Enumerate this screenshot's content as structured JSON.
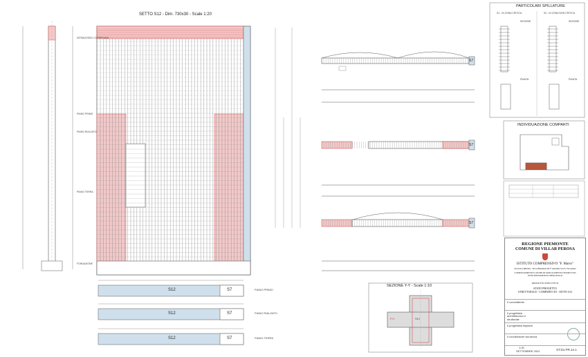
{
  "drawing": {
    "main_title": "SETTO S12 - Dim. 730x30 - Scale 1:20",
    "section_title": "SEZIONE Y-Y - Scale 1:10",
    "elevation_labels": [
      "FONDAZIONE",
      "PIANO TERRA",
      "PIANO RIALZATO",
      "PIANO PRIMO",
      "INTRADOSSO COPERTURA"
    ],
    "strip_labels": [
      {
        "left": "S12",
        "right": "S7",
        "level": "PIANO PRIMO"
      },
      {
        "left": "S12",
        "right": "S7",
        "level": "PIANO RIALZATO"
      },
      {
        "left": "S12",
        "right": "S7",
        "level": "PIANO TERRA"
      }
    ],
    "plan_tags": [
      "S7",
      "S7",
      "S7"
    ],
    "section_tags": [
      "P.V.",
      "S12"
    ]
  },
  "details": {
    "title": "PARTICOLARI SPILLATURE",
    "cols": [
      "S1 - IN ZONA CRITICA",
      "S2 - IN ZONA NON CRITICA"
    ],
    "sub_labels": [
      "SEZIONE",
      "SEZIONE",
      "PIANTA",
      "PIANTA"
    ]
  },
  "key_plan": {
    "title": "INDIVIDUAZIONE COMPARTI"
  },
  "title_block": {
    "region": "REGIONE PIEMONTE",
    "comune": "COMUNE DI VILLAR PEROSA",
    "institute": "ISTITUTO COMPRENSIVO \"F. Marro\"",
    "school": "SCUOLA MEDIA - SECONDARIA DI I° GRADO Via IV Novembre",
    "works": "COMPLETAMENTO LAVORI DI ADEGUAMENTO SISMICO ED EFFICIENTAMENTO ENERGETICO",
    "phase": "PROGETTO ESECUTIVO",
    "state": "STATO PROGETTO",
    "subject": "STRUTTURALE - COMPARTO D1 - SETTO S12",
    "roles": [
      "Il committente",
      "Il progettista architettonico e strutturale",
      "Il progettista impianti",
      "Il coordinatore sicurezza"
    ],
    "scale": "1:20",
    "date": "SETTEMBRE 2022",
    "code": "ST.D1.PR.14.1"
  },
  "colors": {
    "red_fill": "#f3c9c9",
    "red_line": "#d23a3a",
    "blue_fill": "#cfe0ec",
    "line": "#555555"
  }
}
